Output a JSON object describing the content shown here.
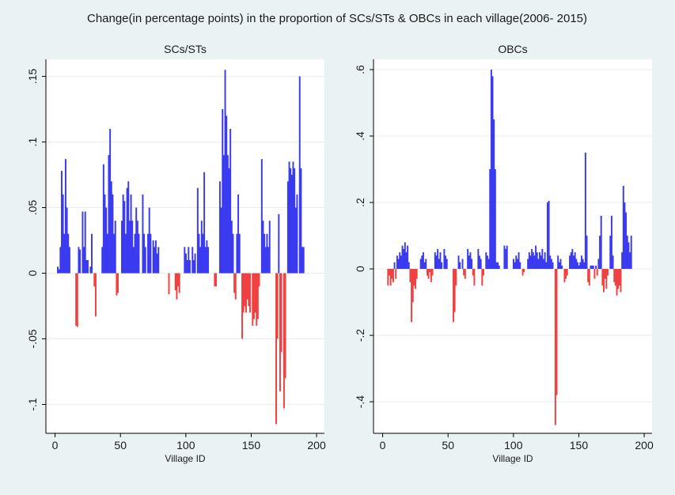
{
  "title": "Change(in percentage points) in the proportion of SCs/STs & OBCs in each village(2006- 2015)",
  "chart_data": [
    {
      "type": "bar",
      "title": "SCs/STs",
      "xlabel": "Village ID",
      "color": "#3a3af0",
      "negative_color": "#f04040",
      "grid": true,
      "xlim": [
        -7,
        206
      ],
      "ylim": [
        -0.122,
        0.163
      ],
      "xticks": [
        0,
        50,
        100,
        150,
        200
      ],
      "yticks": [
        {
          "value": -0.1,
          "label": "-.1"
        },
        {
          "value": -0.05,
          "label": "-.05"
        },
        0,
        {
          "value": 0.05,
          "label": ".05"
        },
        {
          "value": 0.1,
          "label": ".1"
        },
        {
          "value": 0.15,
          "label": ".15"
        }
      ],
      "x": [
        1,
        2,
        3,
        4,
        5,
        6,
        7,
        8,
        9,
        10,
        11,
        12,
        13,
        14,
        15,
        16,
        17,
        18,
        19,
        20,
        21,
        22,
        23,
        24,
        25,
        26,
        27,
        28,
        29,
        30,
        31,
        32,
        33,
        34,
        35,
        36,
        37,
        38,
        39,
        40,
        41,
        42,
        43,
        44,
        45,
        46,
        47,
        48,
        49,
        50,
        51,
        52,
        53,
        54,
        55,
        56,
        57,
        58,
        59,
        60,
        61,
        62,
        63,
        64,
        65,
        66,
        67,
        68,
        69,
        70,
        71,
        72,
        73,
        74,
        75,
        76,
        77,
        78,
        79,
        80,
        81,
        82,
        83,
        84,
        85,
        86,
        87,
        88,
        89,
        90,
        91,
        92,
        93,
        94,
        95,
        96,
        97,
        98,
        99,
        100,
        101,
        102,
        103,
        104,
        105,
        106,
        107,
        108,
        109,
        110,
        111,
        112,
        113,
        114,
        115,
        116,
        117,
        118,
        119,
        120,
        121,
        122,
        123,
        124,
        125,
        126,
        127,
        128,
        129,
        130,
        131,
        132,
        133,
        134,
        135,
        136,
        137,
        138,
        139,
        140,
        141,
        142,
        143,
        144,
        145,
        146,
        147,
        148,
        149,
        150,
        151,
        152,
        153,
        154,
        155,
        156,
        157,
        158,
        159,
        160,
        161,
        162,
        163,
        164,
        165,
        166,
        167,
        168,
        169,
        170,
        171,
        172,
        173,
        174,
        175,
        176,
        177,
        178,
        179,
        180,
        181,
        182,
        183,
        184,
        185,
        186,
        187,
        188,
        189,
        190
      ],
      "values": [
        0,
        0.005,
        0.003,
        0.02,
        0.078,
        0.06,
        0.03,
        0.087,
        0.05,
        0.03,
        0.02,
        0,
        0,
        0,
        0,
        -0.04,
        -0.041,
        0.02,
        0.018,
        0,
        0.047,
        0.02,
        0.047,
        0.01,
        0.01,
        0,
        0.005,
        0.03,
        0,
        -0.01,
        -0.033,
        0,
        0,
        0,
        0,
        0.02,
        0.083,
        0.06,
        0.05,
        0.03,
        0.09,
        0.11,
        0.07,
        0.06,
        0.03,
        0.04,
        -0.017,
        -0.015,
        0,
        0,
        0.04,
        0.06,
        0.055,
        0.03,
        0.065,
        0.07,
        0.04,
        0.06,
        0.04,
        0.02,
        0.03,
        0.05,
        0.04,
        0.03,
        0,
        0,
        0.06,
        0.03,
        0.02,
        0,
        0.03,
        0.05,
        0.03,
        0,
        0.025,
        0.02,
        0.025,
        0.015,
        0.02,
        0,
        0,
        0,
        0,
        0,
        0,
        0,
        -0.016,
        0,
        0,
        0,
        0,
        -0.013,
        -0.02,
        -0.01,
        -0.015,
        0,
        0,
        0,
        0.02,
        0.015,
        0.01,
        0.02,
        0.01,
        0,
        0.02,
        0.01,
        0.015,
        0,
        0.065,
        0.03,
        0.02,
        0.04,
        0.03,
        0.077,
        0.02,
        0.025,
        0.02,
        0,
        0,
        0,
        0,
        -0.01,
        -0.01,
        0,
        0,
        0.07,
        0.05,
        0.125,
        0.09,
        0.155,
        0.12,
        0.09,
        0.08,
        0.11,
        0.04,
        0.03,
        -0.015,
        -0.02,
        0.03,
        0.06,
        0.03,
        0,
        -0.05,
        -0.03,
        -0.025,
        -0.03,
        -0.02,
        -0.025,
        -0.03,
        0,
        -0.04,
        -0.035,
        -0.03,
        -0.04,
        -0.035,
        -0.01,
        0,
        0.087,
        0.04,
        0.03,
        0.02,
        0.03,
        0.02,
        0.04,
        0,
        0,
        0,
        0,
        -0.115,
        -0.05,
        0.045,
        -0.09,
        -0.06,
        0,
        -0.103,
        -0.08,
        0,
        0.07,
        0.085,
        0.08,
        0.075,
        0.085,
        0.08,
        0.05,
        0.06,
        0,
        0.15,
        0.08,
        0.02,
        0.02
      ]
    },
    {
      "type": "bar",
      "title": "OBCs",
      "xlabel": "Village ID",
      "color": "#3a3af0",
      "negative_color": "#f04040",
      "grid": true,
      "xlim": [
        -7,
        206
      ],
      "ylim": [
        -0.495,
        0.631
      ],
      "xticks": [
        0,
        50,
        100,
        150,
        200
      ],
      "yticks": [
        {
          "value": -0.4,
          "label": "-.4"
        },
        {
          "value": -0.2,
          "label": "-.2"
        },
        0,
        {
          "value": 0.2,
          "label": ".2"
        },
        {
          "value": 0.4,
          "label": ".4"
        },
        {
          "value": 0.6,
          "label": ".6"
        }
      ],
      "x": [
        1,
        2,
        3,
        4,
        5,
        6,
        7,
        8,
        9,
        10,
        11,
        12,
        13,
        14,
        15,
        16,
        17,
        18,
        19,
        20,
        21,
        22,
        23,
        24,
        25,
        26,
        27,
        28,
        29,
        30,
        31,
        32,
        33,
        34,
        35,
        36,
        37,
        38,
        39,
        40,
        41,
        42,
        43,
        44,
        45,
        46,
        47,
        48,
        49,
        50,
        51,
        52,
        53,
        54,
        55,
        56,
        57,
        58,
        59,
        60,
        61,
        62,
        63,
        64,
        65,
        66,
        67,
        68,
        69,
        70,
        71,
        72,
        73,
        74,
        75,
        76,
        77,
        78,
        79,
        80,
        81,
        82,
        83,
        84,
        85,
        86,
        87,
        88,
        89,
        90,
        91,
        92,
        93,
        94,
        95,
        96,
        97,
        98,
        99,
        100,
        101,
        102,
        103,
        104,
        105,
        106,
        107,
        108,
        109,
        110,
        111,
        112,
        113,
        114,
        115,
        116,
        117,
        118,
        119,
        120,
        121,
        122,
        123,
        124,
        125,
        126,
        127,
        128,
        129,
        130,
        131,
        132,
        133,
        134,
        135,
        136,
        137,
        138,
        139,
        140,
        141,
        142,
        143,
        144,
        145,
        146,
        147,
        148,
        149,
        150,
        151,
        152,
        153,
        154,
        155,
        156,
        157,
        158,
        159,
        160,
        161,
        162,
        163,
        164,
        165,
        166,
        167,
        168,
        169,
        170,
        171,
        172,
        173,
        174,
        175,
        176,
        177,
        178,
        179,
        180,
        181,
        182,
        183,
        184,
        185,
        186,
        187,
        188,
        189,
        190
      ],
      "values": [
        0,
        0,
        0,
        -0.05,
        -0.02,
        -0.05,
        -0.03,
        -0.04,
        0.02,
        -0.03,
        0.04,
        0.03,
        0.05,
        0.04,
        0.07,
        0.06,
        0.08,
        0.05,
        0.07,
        0.02,
        -0.04,
        -0.16,
        -0.1,
        -0.05,
        -0.06,
        -0.03,
        0,
        0,
        0.03,
        0.04,
        0.05,
        0.02,
        0.03,
        -0.02,
        -0.03,
        -0.01,
        -0.04,
        -0.02,
        0,
        0.05,
        0.04,
        0.06,
        0.03,
        0.05,
        0.02,
        0,
        0.06,
        0.04,
        0.03,
        0,
        0,
        0,
        0,
        -0.16,
        -0.13,
        -0.05,
        0,
        0.04,
        0.02,
        0,
        0.03,
        -0.02,
        -0.03,
        0,
        0.06,
        0.04,
        0.05,
        0.03,
        -0.02,
        -0.05,
        0,
        0,
        0.06,
        0.04,
        0.03,
        -0.05,
        -0.02,
        0,
        0.05,
        0.04,
        0.03,
        0.3,
        0.6,
        0.58,
        0.45,
        0.3,
        0.02,
        0.02,
        0.01,
        0,
        0,
        0,
        0.07,
        0.06,
        0.07,
        0,
        0,
        0,
        0,
        0.03,
        0.02,
        0.04,
        0.03,
        0.05,
        0.02,
        0,
        -0.02,
        -0.01,
        0,
        0,
        0.03,
        0.05,
        0.04,
        0.06,
        0.05,
        0.04,
        0.07,
        0.05,
        0.03,
        0.05,
        0.04,
        0.06,
        0.03,
        0.05,
        0.02,
        0.2,
        0.205,
        0.04,
        0.03,
        0.02,
        0,
        -0.47,
        -0.38,
        0.04,
        0.02,
        0.03,
        0.01,
        0,
        -0.04,
        -0.03,
        -0.02,
        0,
        0.04,
        0.05,
        0.06,
        0.04,
        0.05,
        0.03,
        0.02,
        0.01,
        0.02,
        0.04,
        0.03,
        0.02,
        0.35,
        0.1,
        -0.04,
        -0.05,
        0.01,
        0.01,
        0.01,
        -0.03,
        0.01,
        -0.02,
        0.03,
        0.1,
        0.16,
        -0.05,
        -0.07,
        -0.03,
        -0.06,
        -0.02,
        0,
        0.1,
        0.16,
        0.04,
        -0.04,
        -0.05,
        -0.08,
        -0.06,
        -0.05,
        -0.07,
        0.05,
        0.25,
        0.2,
        0.17,
        0.1,
        0.08,
        0.05,
        0.1
      ]
    }
  ]
}
